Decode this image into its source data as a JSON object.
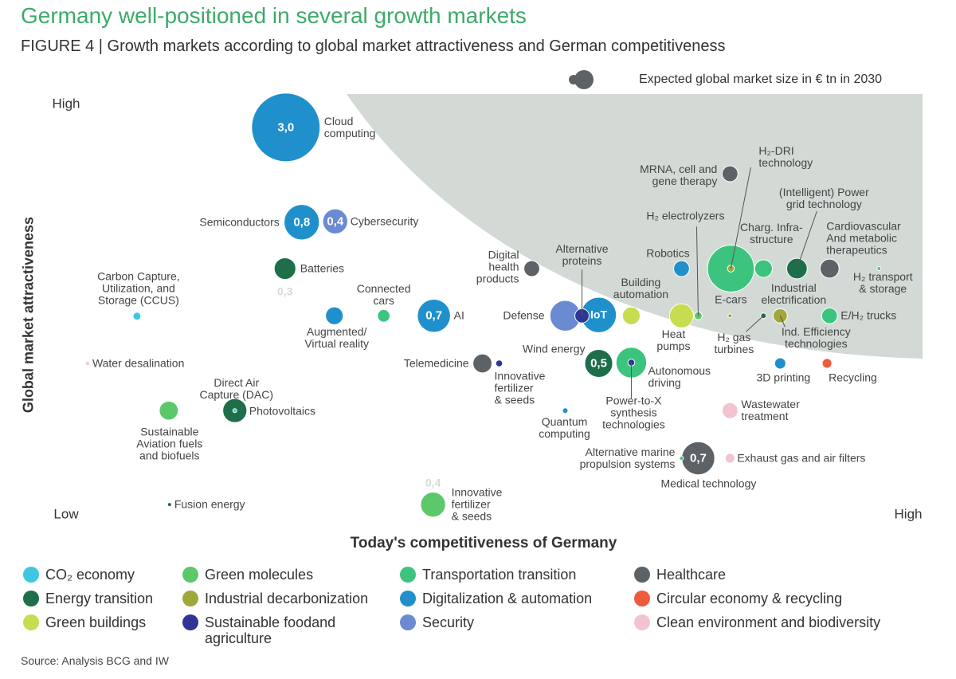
{
  "chart_data": {
    "type": "bubble",
    "title": "Germany well-positioned in several growth markets",
    "subtitle": "FIGURE 4 | Growth markets according to global market attractiveness and German competitiveness",
    "size_legend": "Expected global market size in € tn in 2030",
    "x_label": "Today's competitiveness of Germany",
    "y_label": "Global market attractiveness",
    "source": "Source: Analysis BCG and IW",
    "xlim": [
      0,
      100
    ],
    "ylim": [
      0,
      100
    ],
    "xticks": [
      {
        "value": 100,
        "label": "High"
      }
    ],
    "yticks": [
      {
        "value": 0,
        "label": "Low"
      },
      {
        "value": 100,
        "label": "High"
      }
    ],
    "series": [
      {
        "name": "CO₂ economy",
        "color": "#3ec8e0",
        "labels": [
          "Carbon Capture,\nUtilization, and\nStorage (CCUS)",
          "Direct Air\nCapture (DAC)"
        ],
        "x": [
          7.8,
          19.5
        ],
        "y": [
          48.2,
          25.2
        ],
        "sizes": [
          0.04,
          0.01
        ],
        "value_labels": [
          null,
          null
        ]
      },
      {
        "name": "Energy transition",
        "color": "#1e6e4a",
        "labels": [
          "Batteries",
          "(Intelligent) Power\ngrid technology",
          "H₂ gas\nturbines",
          "Wind energy",
          "Photovoltaics",
          "Fusion energy"
        ],
        "x": [
          25.5,
          86.7,
          82.7,
          63.0,
          19.5,
          11.7
        ],
        "y": [
          59.8,
          59.8,
          48.3,
          36.7,
          25.2,
          2.3
        ],
        "sizes": [
          0.3,
          0.27,
          0.02,
          0.5,
          0.37,
          0.01
        ],
        "value_labels": [
          "0,3",
          null,
          null,
          "0,5",
          null,
          null
        ]
      },
      {
        "name": "Green buildings",
        "color": "#c8dc50",
        "labels": [
          "Building\nautomation",
          "Heat\npumps"
        ],
        "x": [
          66.9,
          72.9
        ],
        "y": [
          48.3,
          48.3
        ],
        "sizes": [
          0.2,
          0.37
        ],
        "value_labels": [
          null,
          null
        ]
      },
      {
        "name": "Green molecules",
        "color": "#5cc86a",
        "labels": [
          "H₂ electrolyzers",
          "H₂ transport\n& storage",
          "Sustainable\nAviation fuels\nand biofuels",
          "Innovative\nfertilizer\n& seeds"
        ],
        "x": [
          74.9,
          96.5,
          11.6,
          43.2
        ],
        "y": [
          48.3,
          59.8,
          25.2,
          2.3
        ],
        "sizes": [
          0.04,
          0.01,
          0.23,
          0.4
        ],
        "value_labels": [
          null,
          null,
          null,
          "0,4"
        ]
      },
      {
        "name": "Industrial decarbonization",
        "color": "#a0a83a",
        "labels": [
          "H₂-DRI\ntechnology",
          "Industrial\nelectrification",
          "Ind. Efficiency\ntechnologies"
        ],
        "x": [
          78.8,
          78.7,
          84.7
        ],
        "y": [
          59.8,
          48.3,
          48.3
        ],
        "sizes": [
          0.03,
          0.01,
          0.13
        ],
        "value_labels": [
          null,
          null,
          null
        ]
      },
      {
        "name": "Sustainable foodand\nagriculture",
        "color": "#2e3592",
        "labels": [
          "Alternative\nproteins",
          "Innovative\nfertilizer\n& seeds",
          "Power-to-X\nsynthesis\ntechnologies"
        ],
        "x": [
          61.0,
          51.1,
          66.9
        ],
        "y": [
          48.3,
          36.7,
          36.9
        ],
        "sizes": [
          0.13,
          0.03,
          0.03
        ],
        "value_labels": [
          null,
          null,
          null
        ]
      },
      {
        "name": "Transportation transition",
        "color": "#3cc47e",
        "labels": [
          "Connected\ncars",
          "E-cars",
          "Charg. Infra-\nstructure",
          "E/H₂ trucks",
          "Autonomous\ndriving",
          "Alternative marine\npropulsion systems"
        ],
        "x": [
          37.3,
          78.8,
          82.7,
          90.6,
          66.9,
          72.9
        ],
        "y": [
          48.3,
          59.8,
          59.8,
          48.3,
          36.9,
          13.6
        ],
        "sizes": [
          0.1,
          1.4,
          0.2,
          0.16,
          0.6,
          0.01
        ],
        "value_labels": [
          null,
          null,
          null,
          null,
          null,
          null
        ]
      },
      {
        "name": "Digitalization & automation",
        "color": "#2090cc",
        "labels": [
          "Cloud\ncomputing",
          "Semiconductors",
          "Augmented/\nVirtual reality",
          "AI",
          "IoT",
          "Robotics",
          "3D printing",
          "Quantum\ncomputing"
        ],
        "x": [
          25.6,
          27.5,
          31.4,
          43.3,
          63.0,
          72.9,
          84.7,
          59.0
        ],
        "y": [
          94.2,
          71.1,
          48.3,
          48.3,
          48.5,
          59.8,
          36.7,
          25.2
        ],
        "sizes": [
          3.0,
          0.8,
          0.2,
          0.7,
          0.8,
          0.16,
          0.08,
          0.02
        ],
        "value_labels": [
          "3,0",
          "0,8",
          null,
          "0,7",
          null,
          null,
          null,
          null
        ]
      },
      {
        "name": "Security",
        "color": "#6a8ad2",
        "labels": [
          "Cybersecurity",
          "Defense"
        ],
        "x": [
          31.5,
          59.0
        ],
        "y": [
          71.3,
          48.3
        ],
        "sizes": [
          0.4,
          0.6
        ],
        "value_labels": [
          "0,4",
          null
        ]
      },
      {
        "name": "Healthcare",
        "color": "#5d6266",
        "labels": [
          "Digital\nhealth\nproducts",
          "MRNA, cell and\ngene therapy",
          "Cardiovascular\nAnd metabolic\ntherapeutics",
          "Telemedicine",
          "Medical technology"
        ],
        "x": [
          55.0,
          78.7,
          90.6,
          49.1,
          74.9
        ],
        "y": [
          59.8,
          82.9,
          59.8,
          36.7,
          13.6
        ],
        "sizes": [
          0.16,
          0.16,
          0.23,
          0.23,
          0.7
        ],
        "value_labels": [
          null,
          null,
          null,
          null,
          "0,7"
        ]
      },
      {
        "name": "Circular economy & recycling",
        "color": "#ee5a3c",
        "labels": [
          "Recycling"
        ],
        "x": [
          90.3
        ],
        "y": [
          36.7
        ],
        "sizes": [
          0.06
        ],
        "value_labels": [
          null
        ]
      },
      {
        "name": "Clean environment and biodiversity",
        "color": "#f2c4d0",
        "labels": [
          "Water desalination",
          "Wastewater\ntreatment",
          "Exhaust gas and air filters"
        ],
        "x": [
          1.9,
          78.7,
          78.7
        ],
        "y": [
          36.7,
          25.2,
          13.6
        ],
        "sizes": [
          0.01,
          0.16,
          0.06
        ],
        "value_labels": [
          null,
          null,
          null
        ]
      }
    ]
  }
}
